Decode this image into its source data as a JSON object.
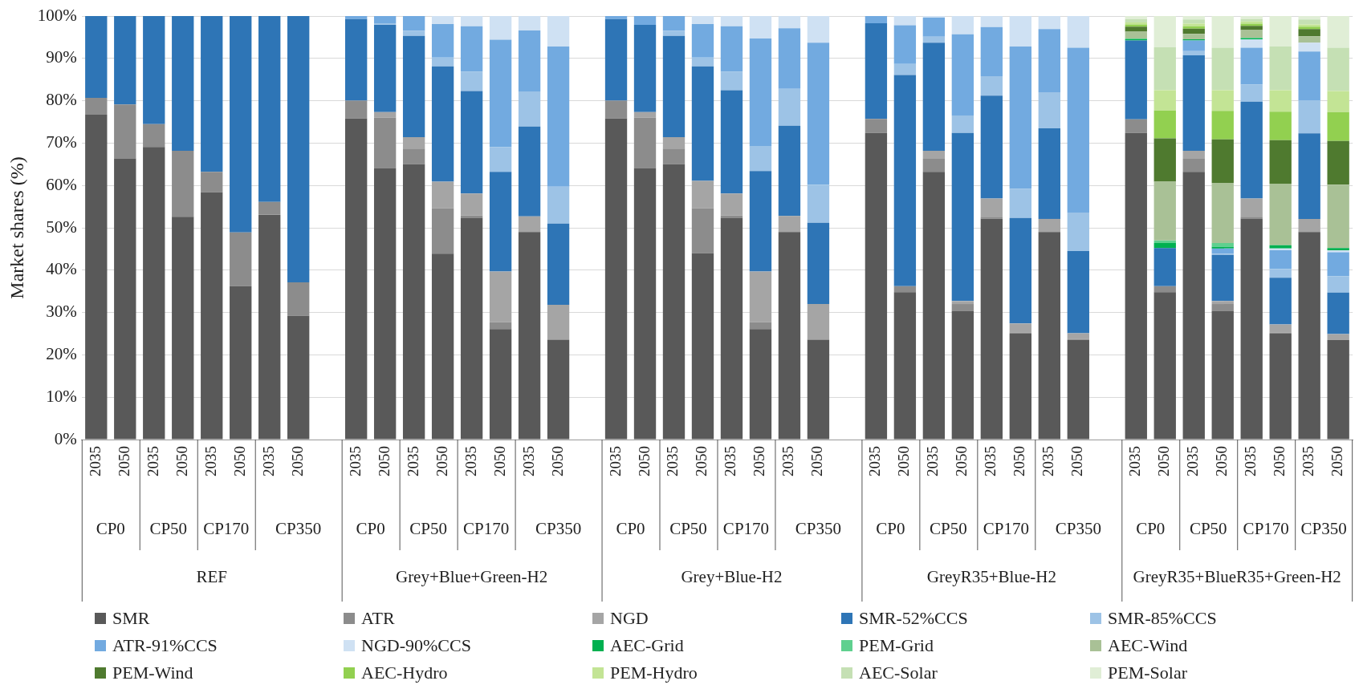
{
  "chart_data": {
    "type": "bar",
    "stacked": true,
    "ylabel": "Market shares (%)",
    "ylim": [
      0,
      100
    ],
    "yticks": [
      {
        "value": 0,
        "label": "0%"
      },
      {
        "value": 10,
        "label": "10%"
      },
      {
        "value": 20,
        "label": "20%"
      },
      {
        "value": 30,
        "label": "30%"
      },
      {
        "value": 40,
        "label": "40%"
      },
      {
        "value": 50,
        "label": "50%"
      },
      {
        "value": 60,
        "label": "60%"
      },
      {
        "value": 70,
        "label": "70%"
      },
      {
        "value": 80,
        "label": "80%"
      },
      {
        "value": 90,
        "label": "90%"
      },
      {
        "value": 100,
        "label": "100%"
      }
    ],
    "grid": "y",
    "legend": "bottom",
    "categories": [
      "2035",
      "2050",
      "2035",
      "2050",
      "2035",
      "2050",
      "2035",
      "2050",
      null,
      "2035",
      "2050",
      "2035",
      "2050",
      "2035",
      "2050",
      "2035",
      "2050",
      null,
      "2035",
      "2050",
      "2035",
      "2050",
      "2035",
      "2050",
      "2035",
      "2050",
      null,
      "2035",
      "2050",
      "2035",
      "2050",
      "2035",
      "2050",
      "2035",
      "2050",
      null,
      "2035",
      "2050",
      "2035",
      "2050",
      "2035",
      "2050",
      "2035",
      "2050"
    ],
    "annotations": [
      "CP0",
      "CP50",
      "CP170",
      "CP350",
      "CP0",
      "CP50",
      "CP170",
      "CP350",
      "CP0",
      "CP50",
      "CP170",
      "CP350",
      "CP0",
      "CP50",
      "CP170",
      "CP350",
      "CP0",
      "CP50",
      "CP170",
      "CP350",
      "REF",
      "Grey+Blue+Green-H2",
      "Grey+Blue-H2",
      "GreyR35+Blue-H2",
      "GreyR35+BlueR35+Green-H2"
    ],
    "series": [
      {
        "name": "SMR",
        "color": "#595959",
        "values": [
          76.7,
          66.4,
          69.1,
          52.6,
          58.4,
          36.2,
          53.1,
          29.2,
          null,
          75.8,
          64.1,
          65.0,
          43.9,
          52.3,
          26.1,
          49.0,
          23.6,
          null,
          75.8,
          64.1,
          65.0,
          44.0,
          52.3,
          26.1,
          49.0,
          23.6,
          null,
          72.4,
          34.8,
          63.2,
          30.4,
          52.2,
          25.0,
          49.0,
          23.5,
          null,
          72.4,
          34.8,
          63.2,
          30.4,
          52.2,
          25.0,
          49.0,
          23.5
        ]
      },
      {
        "name": "ATR",
        "color": "#8c8c8c",
        "values": [
          4.0,
          12.7,
          5.4,
          15.6,
          4.8,
          12.7,
          3.0,
          7.9,
          null,
          4.2,
          11.9,
          3.7,
          10.7,
          0.6,
          1.6,
          null,
          null,
          null,
          4.2,
          11.9,
          3.7,
          10.6,
          0.6,
          1.6,
          null,
          null,
          null,
          3.3,
          1.4,
          3.1,
          1.6,
          0.4,
          0.3,
          null,
          0.2,
          null,
          3.2,
          1.4,
          3.1,
          1.6,
          0.4,
          0.3,
          null,
          null
        ]
      },
      {
        "name": "NGD",
        "color": "#a5a5a5",
        "values": [
          null,
          null,
          null,
          null,
          null,
          null,
          null,
          null,
          null,
          null,
          1.3,
          2.7,
          6.3,
          5.2,
          12.0,
          3.7,
          8.2,
          null,
          null,
          1.3,
          2.7,
          6.5,
          5.2,
          12.0,
          3.8,
          8.4,
          null,
          null,
          null,
          1.9,
          0.7,
          4.3,
          2.1,
          3.1,
          1.4,
          null,
          null,
          null,
          1.9,
          0.7,
          4.3,
          1.9,
          3.1,
          1.4
        ]
      },
      {
        "name": "SMR-52%CCS",
        "color": "#2e75b6",
        "values": [
          19.3,
          20.9,
          25.5,
          31.8,
          36.8,
          51.1,
          43.9,
          62.9,
          null,
          19.3,
          20.6,
          23.9,
          27.2,
          24.2,
          23.5,
          21.2,
          19.2,
          null,
          19.3,
          20.6,
          23.9,
          27.0,
          24.4,
          23.7,
          21.3,
          19.2,
          null,
          22.6,
          49.9,
          25.5,
          39.7,
          24.3,
          24.9,
          21.4,
          19.4,
          null,
          18.6,
          9.0,
          22.5,
          10.9,
          22.9,
          11.0,
          20.2,
          9.8
        ]
      },
      {
        "name": "SMR-85%CCS",
        "color": "#9dc3e6",
        "values": [
          null,
          null,
          null,
          null,
          null,
          null,
          null,
          null,
          null,
          null,
          0.4,
          1.2,
          2.1,
          4.6,
          5.9,
          8.3,
          8.7,
          null,
          null,
          null,
          1.2,
          2.1,
          4.4,
          5.9,
          8.7,
          9.0,
          null,
          null,
          2.6,
          1.4,
          4.1,
          4.6,
          6.9,
          8.5,
          9.1,
          null,
          null,
          null,
          1.0,
          0.3,
          4.0,
          2.1,
          7.8,
          3.9
        ]
      },
      {
        "name": "ATR-91%CCS",
        "color": "#72aae0",
        "values": [
          null,
          null,
          null,
          null,
          null,
          null,
          null,
          null,
          null,
          0.7,
          1.7,
          3.5,
          7.9,
          10.7,
          25.3,
          14.4,
          33.1,
          null,
          0.7,
          2.1,
          3.5,
          7.9,
          10.7,
          25.4,
          14.3,
          33.5,
          null,
          1.7,
          9.1,
          4.5,
          19.2,
          11.6,
          33.6,
          14.9,
          38.9,
          null,
          null,
          null,
          2.5,
          1.2,
          8.7,
          4.4,
          11.5,
          5.6
        ]
      },
      {
        "name": "NGD-90%CCS",
        "color": "#cfe1f3",
        "values": [
          null,
          null,
          null,
          null,
          null,
          null,
          null,
          null,
          null,
          null,
          null,
          null,
          1.9,
          2.4,
          5.6,
          3.4,
          7.2,
          null,
          null,
          null,
          null,
          1.9,
          2.4,
          5.3,
          2.9,
          6.3,
          null,
          null,
          2.2,
          0.4,
          4.3,
          2.6,
          7.2,
          3.1,
          7.5,
          null,
          null,
          null,
          null,
          null,
          2.0,
          0.4,
          2.1,
          0.5
        ]
      },
      {
        "name": "AEC-Grid",
        "color": "#00b050",
        "values": [
          null,
          null,
          null,
          null,
          null,
          null,
          null,
          null,
          null,
          null,
          null,
          null,
          null,
          null,
          null,
          null,
          null,
          null,
          null,
          null,
          null,
          null,
          null,
          null,
          null,
          null,
          null,
          null,
          null,
          null,
          null,
          null,
          null,
          null,
          null,
          null,
          0.3,
          1.2,
          0.3,
          0.4,
          0.2,
          0.8,
          null,
          0.5
        ]
      },
      {
        "name": "PEM-Grid",
        "color": "#5fd08f",
        "values": [
          null,
          null,
          null,
          null,
          null,
          null,
          null,
          null,
          null,
          null,
          null,
          null,
          null,
          null,
          null,
          null,
          null,
          null,
          null,
          null,
          null,
          null,
          null,
          null,
          null,
          null,
          null,
          null,
          null,
          null,
          null,
          null,
          null,
          null,
          null,
          null,
          0.2,
          0.6,
          null,
          0.9,
          0.2,
          null,
          null,
          null
        ]
      },
      {
        "name": "AEC-Wind",
        "color": "#a9c196",
        "values": [
          null,
          null,
          null,
          null,
          null,
          null,
          null,
          null,
          null,
          null,
          null,
          null,
          null,
          null,
          null,
          null,
          null,
          null,
          null,
          null,
          null,
          null,
          null,
          null,
          null,
          null,
          null,
          null,
          null,
          null,
          null,
          null,
          null,
          null,
          null,
          null,
          1.6,
          13.9,
          1.3,
          14.2,
          1.8,
          14.5,
          1.5,
          15.0
        ]
      },
      {
        "name": "PEM-Wind",
        "color": "#4f7a2f",
        "values": [
          null,
          null,
          null,
          null,
          null,
          null,
          null,
          null,
          null,
          null,
          null,
          null,
          null,
          null,
          null,
          null,
          null,
          null,
          null,
          null,
          null,
          null,
          null,
          null,
          null,
          null,
          null,
          null,
          null,
          null,
          null,
          null,
          null,
          null,
          null,
          null,
          1.2,
          10.2,
          1.2,
          10.3,
          1.0,
          10.3,
          1.7,
          10.3
        ]
      },
      {
        "name": "AEC-Hydro",
        "color": "#92d050",
        "values": [
          null,
          null,
          null,
          null,
          null,
          null,
          null,
          null,
          null,
          null,
          null,
          null,
          null,
          null,
          null,
          null,
          null,
          null,
          null,
          null,
          null,
          null,
          null,
          null,
          null,
          null,
          null,
          null,
          null,
          null,
          null,
          null,
          null,
          null,
          null,
          null,
          0.5,
          6.6,
          0.6,
          6.7,
          0.5,
          6.7,
          0.6,
          6.8
        ]
      },
      {
        "name": "PEM-Hydro",
        "color": "#c3e495",
        "values": [
          null,
          null,
          null,
          null,
          null,
          null,
          null,
          null,
          null,
          null,
          null,
          null,
          null,
          null,
          null,
          null,
          null,
          null,
          null,
          null,
          null,
          null,
          null,
          null,
          null,
          null,
          null,
          null,
          null,
          null,
          null,
          null,
          null,
          null,
          null,
          null,
          0.5,
          4.8,
          0.6,
          4.9,
          0.5,
          5.1,
          0.5,
          5.0
        ]
      },
      {
        "name": "AEC-Solar",
        "color": "#c5e0b4",
        "values": [
          null,
          null,
          null,
          null,
          null,
          null,
          null,
          null,
          null,
          null,
          null,
          null,
          null,
          null,
          null,
          null,
          null,
          null,
          null,
          null,
          null,
          null,
          null,
          null,
          null,
          null,
          null,
          null,
          null,
          null,
          null,
          null,
          null,
          null,
          null,
          null,
          0.8,
          10.1,
          1.0,
          10.0,
          0.6,
          10.3,
          1.2,
          10.2
        ]
      },
      {
        "name": "PEM-Solar",
        "color": "#e0eed6",
        "values": [
          null,
          null,
          null,
          null,
          null,
          null,
          null,
          null,
          null,
          null,
          null,
          null,
          null,
          null,
          null,
          null,
          null,
          null,
          null,
          null,
          null,
          null,
          null,
          null,
          null,
          null,
          null,
          null,
          null,
          null,
          null,
          null,
          null,
          null,
          null,
          null,
          0.7,
          7.4,
          0.8,
          7.5,
          0.7,
          7.2,
          0.8,
          7.5
        ]
      }
    ]
  }
}
